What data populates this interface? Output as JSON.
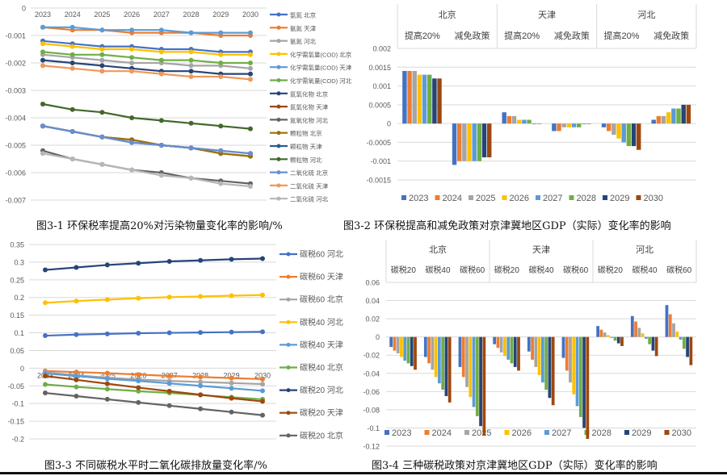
{
  "chart_data": [
    {
      "type": "line",
      "title": "",
      "caption": "图3-1 环保税率提高20%对污染物量变化率的影响/%",
      "x": [
        "2023",
        "2024",
        "2025",
        "2026",
        "2027",
        "2028",
        "2029",
        "2030"
      ],
      "ylim": [
        -0.007,
        0
      ],
      "yticks": [
        "0",
        "-0.001",
        "-0.002",
        "-0.003",
        "-0.004",
        "-0.005",
        "-0.006",
        "-0.007"
      ],
      "ytick_values": [
        0,
        -0.001,
        -0.002,
        -0.003,
        -0.004,
        -0.005,
        -0.006,
        -0.007
      ],
      "xaxis_position": "top",
      "grid": true,
      "legend": "right",
      "series": [
        {
          "name": "氨氮 北京",
          "color": "#4472C4",
          "values": [
            -0.0012,
            -0.0013,
            -0.0014,
            -0.0014,
            -0.0015,
            -0.0015,
            -0.0016,
            -0.0016
          ]
        },
        {
          "name": "氨氮 天津",
          "color": "#ED7D31",
          "values": [
            -0.0007,
            -0.0008,
            -0.0008,
            -0.0009,
            -0.0009,
            -0.0009,
            -0.001,
            -0.001
          ]
        },
        {
          "name": "氨氮 河北",
          "color": "#A5A5A5",
          "values": [
            -0.0017,
            -0.0018,
            -0.0019,
            -0.002,
            -0.002,
            -0.0021,
            -0.0021,
            -0.0022
          ]
        },
        {
          "name": "化学需氧量(COD) 北京",
          "color": "#FFC000",
          "values": [
            -0.0013,
            -0.0014,
            -0.0015,
            -0.0015,
            -0.0016,
            -0.0016,
            -0.0017,
            -0.0017
          ]
        },
        {
          "name": "化学需氧量(COD) 天津",
          "color": "#5B9BD5",
          "values": [
            -0.0007,
            -0.0007,
            -0.0008,
            -0.0008,
            -0.0008,
            -0.0009,
            -0.0009,
            -0.0009
          ]
        },
        {
          "name": "化学需氧量(COD) 河北",
          "color": "#70AD47",
          "values": [
            -0.0016,
            -0.0017,
            -0.0017,
            -0.0018,
            -0.0019,
            -0.0019,
            -0.002,
            -0.002
          ]
        },
        {
          "name": "氮氧化物 北京",
          "color": "#264478",
          "values": [
            -0.0019,
            -0.002,
            -0.0021,
            -0.0022,
            -0.0023,
            -0.0023,
            -0.0024,
            -0.0024
          ]
        },
        {
          "name": "氮氧化物 天津",
          "color": "#9E480E",
          "values": [
            -0.0043,
            -0.0045,
            -0.0047,
            -0.0048,
            -0.005,
            -0.0051,
            -0.0053,
            -0.0054
          ]
        },
        {
          "name": "氮氧化物 河北",
          "color": "#636363",
          "values": [
            -0.0052,
            -0.0055,
            -0.0057,
            -0.0059,
            -0.006,
            -0.0062,
            -0.0063,
            -0.0064
          ]
        },
        {
          "name": "颗粒物 北京",
          "color": "#997300",
          "values": [
            -0.0043,
            -0.0045,
            -0.0047,
            -0.0048,
            -0.005,
            -0.0051,
            -0.0053,
            -0.0054
          ]
        },
        {
          "name": "颗粒物 天津",
          "color": "#255E91",
          "values": [
            -0.0043,
            -0.0045,
            -0.0047,
            -0.0049,
            -0.005,
            -0.0051,
            -0.0052,
            -0.0053
          ]
        },
        {
          "name": "颗粒物 河北",
          "color": "#43682B",
          "values": [
            -0.0035,
            -0.0037,
            -0.0038,
            -0.004,
            -0.0041,
            -0.0042,
            -0.0043,
            -0.0044
          ]
        },
        {
          "name": "二氧化硫 北京",
          "color": "#698ED0",
          "values": [
            -0.0043,
            -0.0045,
            -0.0047,
            -0.0049,
            -0.005,
            -0.0051,
            -0.0052,
            -0.0053
          ]
        },
        {
          "name": "二氧化硫 天津",
          "color": "#F1975A",
          "values": [
            -0.0021,
            -0.0022,
            -0.0023,
            -0.0023,
            -0.0024,
            -0.0025,
            -0.0025,
            -0.0026
          ]
        },
        {
          "name": "二氧化硫 河北",
          "color": "#B7B7B7",
          "values": [
            -0.0053,
            -0.0055,
            -0.0057,
            -0.0059,
            -0.0061,
            -0.0062,
            -0.0064,
            -0.0065
          ]
        }
      ]
    },
    {
      "type": "bar",
      "title": "",
      "caption": "图3-2 环保税提高和减免政策对京津冀地区GDP（实际）变化率的影响",
      "groups": [
        "北京",
        "天津",
        "河北"
      ],
      "categories": [
        "提高20%",
        "减免政策",
        "提高20%",
        "减免政策",
        "提高20%",
        "减免政策"
      ],
      "ylim": [
        -0.0015,
        0.002
      ],
      "yticks": [
        "0.002",
        "0.0015",
        "0.001",
        "0.0005",
        "0",
        "-0.0005",
        "-0.001",
        "-0.0015"
      ],
      "ytick_values": [
        0.002,
        0.0015,
        0.001,
        0.0005,
        0,
        -0.0005,
        -0.001,
        -0.0015
      ],
      "grid": true,
      "legend": "bottom",
      "series": [
        {
          "name": "2023",
          "color": "#4472C4",
          "values": [
            0.0014,
            -0.0011,
            0.0003,
            -0.0002,
            -0.0001,
            0.0001
          ]
        },
        {
          "name": "2024",
          "color": "#ED7D31",
          "values": [
            0.0014,
            -0.001,
            0.0002,
            -0.0002,
            -0.0002,
            0.0002
          ]
        },
        {
          "name": "2025",
          "color": "#A5A5A5",
          "values": [
            0.0014,
            -0.001,
            0.0002,
            -0.0001,
            -0.0003,
            0.0002
          ]
        },
        {
          "name": "2026",
          "color": "#FFC000",
          "values": [
            0.0013,
            -0.001,
            0.0001,
            -0.0001,
            -0.0004,
            0.0003
          ]
        },
        {
          "name": "2027",
          "color": "#5B9BD5",
          "values": [
            0.0013,
            -0.001,
            0.0001,
            -0.0001,
            -0.0005,
            0.0004
          ]
        },
        {
          "name": "2028",
          "color": "#70AD47",
          "values": [
            0.0013,
            -0.001,
            0.0001,
            -0.0001,
            -0.0006,
            0.0004
          ]
        },
        {
          "name": "2029",
          "color": "#264478",
          "values": [
            0.0012,
            -0.0009,
            0,
            0,
            -0.0006,
            0.0005
          ]
        },
        {
          "name": "2030",
          "color": "#9E480E",
          "values": [
            0.0012,
            -0.0009,
            0,
            0,
            -0.0007,
            0.0005
          ]
        }
      ]
    },
    {
      "type": "line",
      "title": "",
      "caption": "图3-3 不同碳税水平时二氧化碳排放量变化率/%",
      "x": [
        "2023",
        "2024",
        "2025",
        "2026",
        "2027",
        "2028",
        "2029",
        "2030"
      ],
      "ylim": [
        -0.2,
        0.35
      ],
      "yticks": [
        "0.35",
        "0.3",
        "0.25",
        "0.2",
        "0.15",
        "0.1",
        "0.05",
        "0",
        "-0.05",
        "-0.1",
        "-0.15",
        "-0.2"
      ],
      "ytick_values": [
        0.35,
        0.3,
        0.25,
        0.2,
        0.15,
        0.1,
        0.05,
        0,
        -0.05,
        -0.1,
        -0.15,
        -0.2
      ],
      "xaxis_position": "zero",
      "grid": true,
      "legend": "right",
      "series": [
        {
          "name": "碳税60 河北",
          "color": "#4472C4",
          "values": [
            0.092,
            0.095,
            0.097,
            0.099,
            0.1,
            0.101,
            0.102,
            0.103
          ]
        },
        {
          "name": "碳税60 天津",
          "color": "#ED7D31",
          "values": [
            -0.008,
            -0.011,
            -0.014,
            -0.018,
            -0.022,
            -0.025,
            -0.028,
            -0.031
          ]
        },
        {
          "name": "碳税60 北京",
          "color": "#A5A5A5",
          "values": [
            -0.012,
            -0.02,
            -0.027,
            -0.032,
            -0.036,
            -0.039,
            -0.042,
            -0.045
          ]
        },
        {
          "name": "碳税40 河北",
          "color": "#FFC000",
          "values": [
            0.185,
            0.19,
            0.194,
            0.198,
            0.201,
            0.203,
            0.205,
            0.207
          ]
        },
        {
          "name": "碳税40 天津",
          "color": "#5B9BD5",
          "values": [
            -0.015,
            -0.022,
            -0.03,
            -0.036,
            -0.043,
            -0.05,
            -0.057,
            -0.064
          ]
        },
        {
          "name": "碳税40 北京",
          "color": "#70AD47",
          "values": [
            -0.046,
            -0.053,
            -0.059,
            -0.065,
            -0.07,
            -0.076,
            -0.082,
            -0.088
          ]
        },
        {
          "name": "碳税20 河北",
          "color": "#264478",
          "values": [
            0.278,
            0.285,
            0.292,
            0.297,
            0.302,
            0.305,
            0.308,
            0.31
          ]
        },
        {
          "name": "碳税20 天津",
          "color": "#9E480E",
          "values": [
            -0.022,
            -0.033,
            -0.044,
            -0.055,
            -0.065,
            -0.075,
            -0.085,
            -0.094
          ]
        },
        {
          "name": "碳税20 北京",
          "color": "#636363",
          "values": [
            -0.07,
            -0.079,
            -0.088,
            -0.097,
            -0.106,
            -0.115,
            -0.124,
            -0.133
          ]
        }
      ]
    },
    {
      "type": "bar",
      "title": "",
      "caption": "图3-4 三种碳税政策对京津冀地区GDP（实际）变化率的影响",
      "groups": [
        "北京",
        "天津",
        "河北"
      ],
      "categories": [
        "碳税20",
        "碳税40",
        "碳税60",
        "碳税20",
        "碳税40",
        "碳税60",
        "碳税20",
        "碳税40",
        "碳税60"
      ],
      "ylim": [
        -0.12,
        0.06
      ],
      "yticks": [
        "0.06",
        "0.04",
        "0.02",
        "0",
        "-0.02",
        "-0.04",
        "-0.06",
        "-0.08",
        "-0.1",
        "-0.12"
      ],
      "ytick_values": [
        0.06,
        0.04,
        0.02,
        0,
        -0.02,
        -0.04,
        -0.06,
        -0.08,
        -0.1,
        -0.12
      ],
      "grid": true,
      "legend": "bottom",
      "series": [
        {
          "name": "2023",
          "color": "#4472C4",
          "values": [
            -0.011,
            -0.022,
            -0.033,
            -0.008,
            -0.016,
            -0.023,
            0.012,
            0.023,
            0.035
          ]
        },
        {
          "name": "2024",
          "color": "#ED7D31",
          "values": [
            -0.015,
            -0.029,
            -0.044,
            -0.012,
            -0.025,
            -0.037,
            0.008,
            0.017,
            0.025
          ]
        },
        {
          "name": "2025",
          "color": "#A5A5A5",
          "values": [
            -0.018,
            -0.036,
            -0.055,
            -0.017,
            -0.033,
            -0.05,
            0.005,
            0.01,
            0.015
          ]
        },
        {
          "name": "2026",
          "color": "#FFC000",
          "values": [
            -0.022,
            -0.044,
            -0.066,
            -0.021,
            -0.042,
            -0.063,
            0.002,
            0.004,
            0.006
          ]
        },
        {
          "name": "2027",
          "color": "#5B9BD5",
          "values": [
            -0.026,
            -0.051,
            -0.077,
            -0.025,
            -0.05,
            -0.076,
            -0.001,
            -0.002,
            -0.003
          ]
        },
        {
          "name": "2028",
          "color": "#70AD47",
          "values": [
            -0.029,
            -0.058,
            -0.087,
            -0.029,
            -0.058,
            -0.088,
            -0.004,
            -0.008,
            -0.013
          ]
        },
        {
          "name": "2029",
          "color": "#264478",
          "values": [
            -0.032,
            -0.065,
            -0.098,
            -0.033,
            -0.067,
            -0.1,
            -0.007,
            -0.015,
            -0.022
          ]
        },
        {
          "name": "2030",
          "color": "#9E480E",
          "values": [
            -0.036,
            -0.072,
            -0.108,
            -0.037,
            -0.075,
            -0.112,
            -0.01,
            -0.021,
            -0.031
          ]
        }
      ]
    }
  ]
}
